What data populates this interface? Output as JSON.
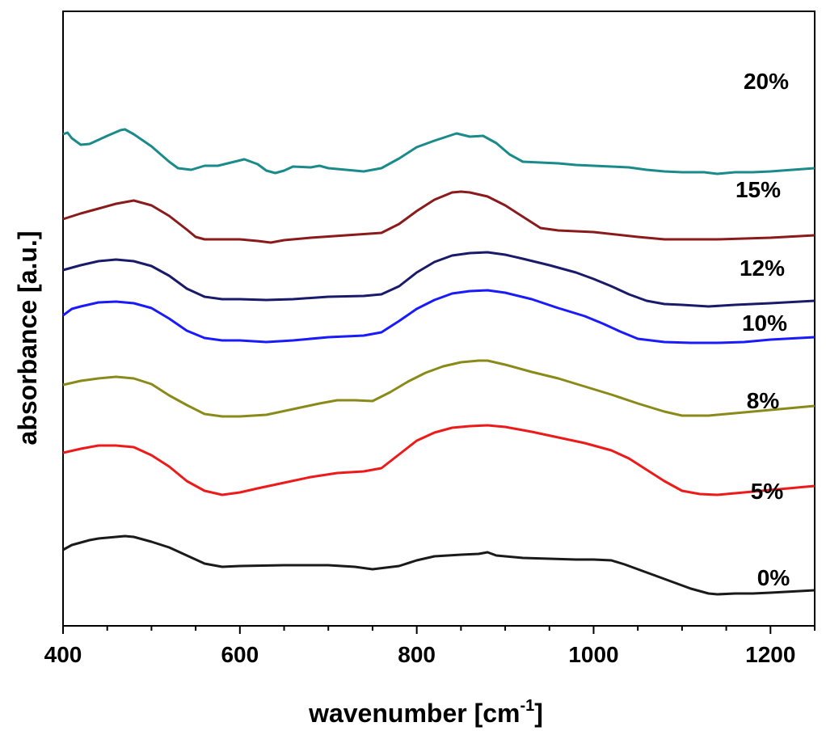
{
  "chart_data": {
    "type": "line",
    "xlabel": "wavenumber [cm",
    "xlabel_sup": "-1",
    "xlabel_close": "]",
    "ylabel": "absorbance [a.u.]",
    "xlim": [
      400,
      1250
    ],
    "x_ticks": [
      400,
      600,
      800,
      1000,
      1200
    ],
    "x_tick_labels": [
      "400",
      "600",
      "800",
      "1000",
      "1200"
    ],
    "y_ticks_shown": false,
    "legend": "inline labels at right",
    "series": [
      {
        "name": "20%",
        "color": "#1a8a8a",
        "points": [
          [
            400,
            608
          ],
          [
            405,
            610
          ],
          [
            410,
            603
          ],
          [
            420,
            595
          ],
          [
            430,
            596
          ],
          [
            440,
            601
          ],
          [
            450,
            606
          ],
          [
            465,
            613
          ],
          [
            470,
            614
          ],
          [
            480,
            608
          ],
          [
            500,
            593
          ],
          [
            520,
            574
          ],
          [
            530,
            566
          ],
          [
            545,
            564
          ],
          [
            560,
            569
          ],
          [
            575,
            569
          ],
          [
            590,
            573
          ],
          [
            605,
            577
          ],
          [
            620,
            571
          ],
          [
            630,
            563
          ],
          [
            640,
            560
          ],
          [
            650,
            563
          ],
          [
            660,
            568
          ],
          [
            680,
            567
          ],
          [
            690,
            569
          ],
          [
            700,
            566
          ],
          [
            720,
            564
          ],
          [
            740,
            562
          ],
          [
            760,
            566
          ],
          [
            780,
            578
          ],
          [
            800,
            592
          ],
          [
            820,
            600
          ],
          [
            845,
            609
          ],
          [
            860,
            605
          ],
          [
            875,
            606
          ],
          [
            890,
            597
          ],
          [
            905,
            583
          ],
          [
            920,
            574
          ],
          [
            940,
            573
          ],
          [
            960,
            572
          ],
          [
            980,
            570
          ],
          [
            1000,
            569
          ],
          [
            1020,
            568
          ],
          [
            1040,
            567
          ],
          [
            1060,
            564
          ],
          [
            1080,
            562
          ],
          [
            1100,
            561
          ],
          [
            1115,
            561
          ],
          [
            1125,
            561
          ],
          [
            1140,
            559
          ],
          [
            1160,
            561
          ],
          [
            1180,
            561
          ],
          [
            1200,
            562
          ],
          [
            1225,
            564
          ],
          [
            1250,
            566
          ]
        ]
      },
      {
        "name": "15%",
        "color": "#8b1a1a",
        "points": [
          [
            400,
            503
          ],
          [
            420,
            510
          ],
          [
            440,
            516
          ],
          [
            460,
            522
          ],
          [
            480,
            526
          ],
          [
            500,
            520
          ],
          [
            520,
            507
          ],
          [
            540,
            490
          ],
          [
            550,
            481
          ],
          [
            560,
            478
          ],
          [
            580,
            478
          ],
          [
            600,
            478
          ],
          [
            620,
            476
          ],
          [
            635,
            474
          ],
          [
            650,
            477
          ],
          [
            680,
            480
          ],
          [
            720,
            483
          ],
          [
            760,
            486
          ],
          [
            780,
            497
          ],
          [
            800,
            513
          ],
          [
            820,
            527
          ],
          [
            840,
            536
          ],
          [
            850,
            537
          ],
          [
            860,
            536
          ],
          [
            880,
            531
          ],
          [
            900,
            520
          ],
          [
            920,
            506
          ],
          [
            940,
            492
          ],
          [
            960,
            489
          ],
          [
            1000,
            487
          ],
          [
            1050,
            481
          ],
          [
            1080,
            478
          ],
          [
            1100,
            478
          ],
          [
            1140,
            478
          ],
          [
            1200,
            480
          ],
          [
            1250,
            483
          ]
        ]
      },
      {
        "name": "12%",
        "color": "#1a1a6b",
        "points": [
          [
            400,
            440
          ],
          [
            420,
            446
          ],
          [
            440,
            451
          ],
          [
            460,
            453
          ],
          [
            480,
            451
          ],
          [
            500,
            445
          ],
          [
            520,
            433
          ],
          [
            540,
            417
          ],
          [
            560,
            407
          ],
          [
            580,
            404
          ],
          [
            600,
            404
          ],
          [
            630,
            403
          ],
          [
            660,
            404
          ],
          [
            700,
            407
          ],
          [
            740,
            408
          ],
          [
            760,
            410
          ],
          [
            780,
            420
          ],
          [
            800,
            437
          ],
          [
            820,
            450
          ],
          [
            840,
            458
          ],
          [
            860,
            461
          ],
          [
            880,
            462
          ],
          [
            900,
            459
          ],
          [
            920,
            454
          ],
          [
            950,
            446
          ],
          [
            980,
            437
          ],
          [
            1000,
            429
          ],
          [
            1020,
            420
          ],
          [
            1040,
            410
          ],
          [
            1060,
            402
          ],
          [
            1080,
            398
          ],
          [
            1100,
            397
          ],
          [
            1130,
            395
          ],
          [
            1160,
            397
          ],
          [
            1200,
            399
          ],
          [
            1250,
            402
          ]
        ]
      },
      {
        "name": "10%",
        "color": "#1a1aff",
        "points": [
          [
            400,
            384
          ],
          [
            410,
            392
          ],
          [
            420,
            395
          ],
          [
            440,
            400
          ],
          [
            460,
            401
          ],
          [
            480,
            399
          ],
          [
            500,
            393
          ],
          [
            520,
            380
          ],
          [
            540,
            365
          ],
          [
            560,
            356
          ],
          [
            580,
            353
          ],
          [
            600,
            353
          ],
          [
            630,
            351
          ],
          [
            660,
            353
          ],
          [
            700,
            357
          ],
          [
            740,
            359
          ],
          [
            760,
            363
          ],
          [
            780,
            377
          ],
          [
            800,
            392
          ],
          [
            820,
            403
          ],
          [
            840,
            411
          ],
          [
            860,
            414
          ],
          [
            880,
            415
          ],
          [
            900,
            412
          ],
          [
            930,
            404
          ],
          [
            960,
            393
          ],
          [
            990,
            383
          ],
          [
            1010,
            374
          ],
          [
            1030,
            364
          ],
          [
            1050,
            355
          ],
          [
            1080,
            351
          ],
          [
            1110,
            350
          ],
          [
            1140,
            350
          ],
          [
            1170,
            351
          ],
          [
            1200,
            354
          ],
          [
            1250,
            357
          ]
        ]
      },
      {
        "name": "8%",
        "color": "#8a8a1a",
        "points": [
          [
            400,
            298
          ],
          [
            420,
            303
          ],
          [
            440,
            306
          ],
          [
            460,
            308
          ],
          [
            480,
            306
          ],
          [
            500,
            299
          ],
          [
            520,
            285
          ],
          [
            540,
            273
          ],
          [
            560,
            262
          ],
          [
            580,
            259
          ],
          [
            600,
            259
          ],
          [
            630,
            261
          ],
          [
            660,
            268
          ],
          [
            690,
            275
          ],
          [
            710,
            279
          ],
          [
            730,
            279
          ],
          [
            750,
            278
          ],
          [
            770,
            289
          ],
          [
            790,
            302
          ],
          [
            810,
            313
          ],
          [
            830,
            321
          ],
          [
            850,
            326
          ],
          [
            870,
            328
          ],
          [
            880,
            328
          ],
          [
            900,
            323
          ],
          [
            930,
            314
          ],
          [
            960,
            306
          ],
          [
            990,
            296
          ],
          [
            1020,
            286
          ],
          [
            1050,
            275
          ],
          [
            1080,
            265
          ],
          [
            1100,
            260
          ],
          [
            1130,
            260
          ],
          [
            1150,
            262
          ],
          [
            1170,
            264
          ],
          [
            1200,
            267
          ],
          [
            1250,
            272
          ]
        ]
      },
      {
        "name": "5%",
        "color": "#ee1a1a",
        "points": [
          [
            400,
            214
          ],
          [
            420,
            219
          ],
          [
            440,
            223
          ],
          [
            460,
            223
          ],
          [
            480,
            221
          ],
          [
            500,
            211
          ],
          [
            520,
            197
          ],
          [
            540,
            179
          ],
          [
            560,
            167
          ],
          [
            580,
            162
          ],
          [
            600,
            165
          ],
          [
            620,
            170
          ],
          [
            650,
            177
          ],
          [
            680,
            184
          ],
          [
            710,
            189
          ],
          [
            740,
            191
          ],
          [
            760,
            195
          ],
          [
            780,
            212
          ],
          [
            800,
            229
          ],
          [
            820,
            239
          ],
          [
            840,
            245
          ],
          [
            860,
            247
          ],
          [
            880,
            248
          ],
          [
            900,
            246
          ],
          [
            930,
            240
          ],
          [
            960,
            233
          ],
          [
            990,
            226
          ],
          [
            1020,
            217
          ],
          [
            1040,
            207
          ],
          [
            1060,
            193
          ],
          [
            1080,
            179
          ],
          [
            1100,
            167
          ],
          [
            1120,
            163
          ],
          [
            1140,
            162
          ],
          [
            1170,
            165
          ],
          [
            1200,
            168
          ],
          [
            1250,
            173
          ]
        ]
      },
      {
        "name": "0%",
        "color": "#1a1a1a",
        "points": [
          [
            400,
            94
          ],
          [
            410,
            100
          ],
          [
            420,
            103
          ],
          [
            430,
            106
          ],
          [
            440,
            108
          ],
          [
            460,
            110
          ],
          [
            470,
            111
          ],
          [
            480,
            110
          ],
          [
            500,
            104
          ],
          [
            520,
            97
          ],
          [
            540,
            87
          ],
          [
            560,
            77
          ],
          [
            580,
            73
          ],
          [
            600,
            74
          ],
          [
            650,
            75
          ],
          [
            700,
            75
          ],
          [
            730,
            73
          ],
          [
            750,
            70
          ],
          [
            780,
            74
          ],
          [
            800,
            81
          ],
          [
            820,
            86
          ],
          [
            850,
            88
          ],
          [
            870,
            89
          ],
          [
            880,
            91
          ],
          [
            890,
            87
          ],
          [
            920,
            84
          ],
          [
            950,
            83
          ],
          [
            980,
            82
          ],
          [
            1000,
            82
          ],
          [
            1020,
            81
          ],
          [
            1035,
            76
          ],
          [
            1050,
            70
          ],
          [
            1070,
            62
          ],
          [
            1090,
            54
          ],
          [
            1110,
            46
          ],
          [
            1130,
            40
          ],
          [
            1140,
            39
          ],
          [
            1160,
            40
          ],
          [
            1180,
            40
          ],
          [
            1200,
            41
          ],
          [
            1250,
            44
          ]
        ]
      }
    ]
  }
}
